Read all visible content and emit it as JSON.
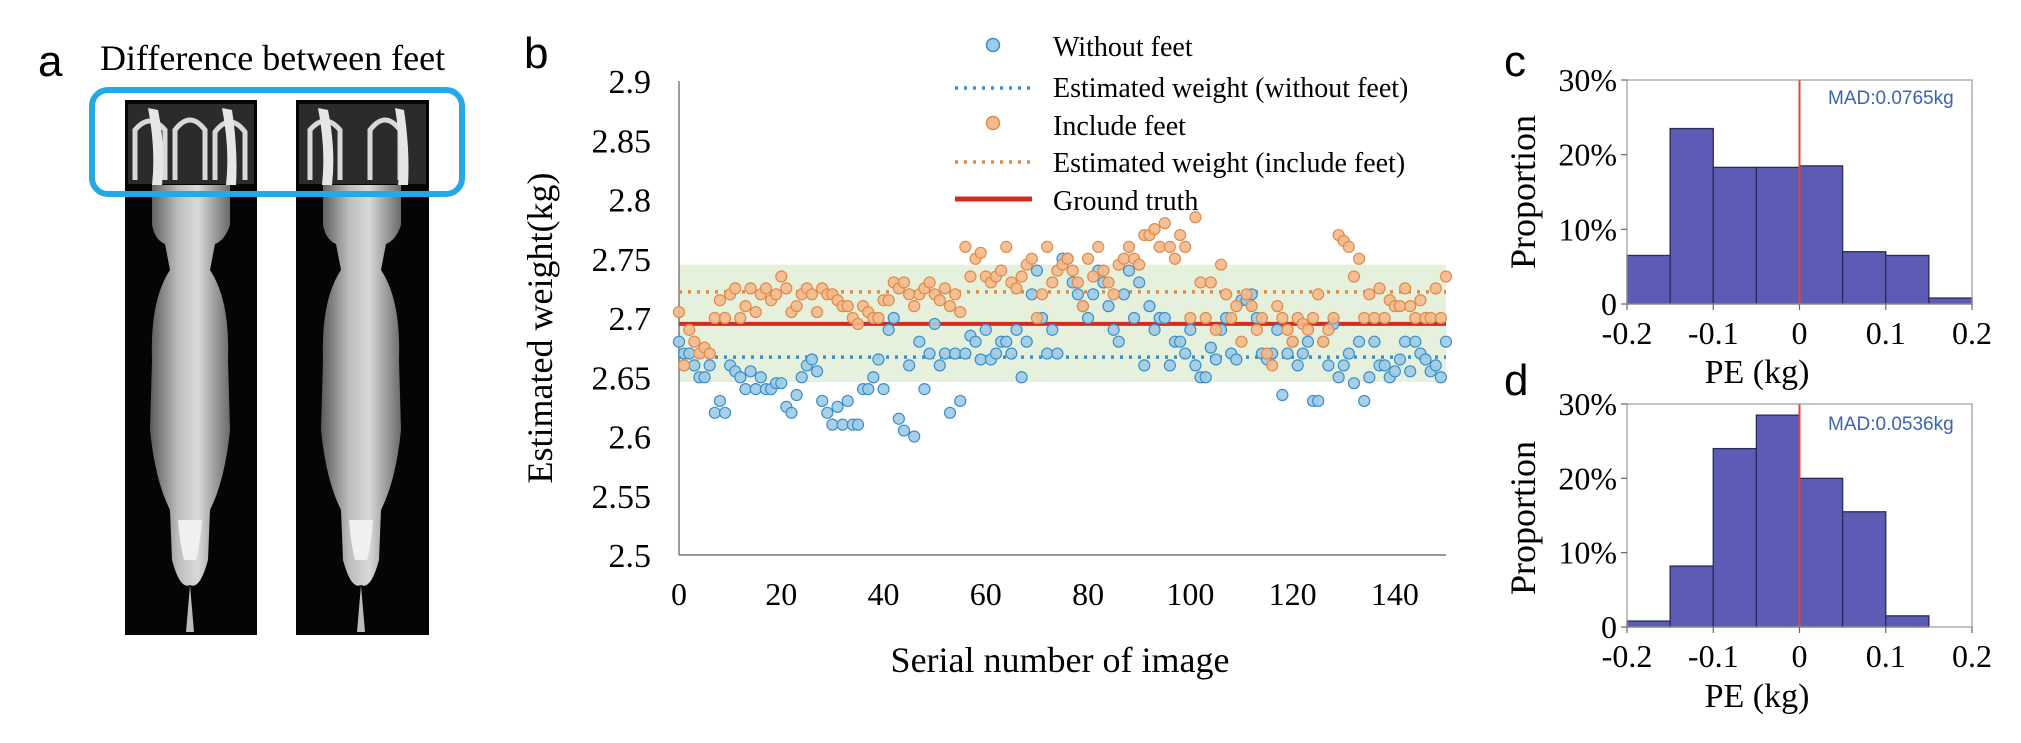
{
  "panel_labels": {
    "a": "a",
    "b": "b",
    "c": "c",
    "d": "d"
  },
  "panel_a": {
    "title": "Difference between feet"
  },
  "colors": {
    "without_fill": "#9ecbe6",
    "without_stroke": "#3a8fc8",
    "include_fill": "#f5b98c",
    "include_stroke": "#e08a48",
    "ground_truth": "#d42b1e",
    "band": "#e5f1dc",
    "hist_fill": "#5c5cb4",
    "hist_stroke": "#2a2a5a",
    "zero_line": "#e5423a",
    "mad_text": "#3b63b5",
    "highlight_box": "#22a9e6"
  },
  "chart_data": [
    {
      "id": "b",
      "type": "scatter",
      "xlabel": "Serial number of image",
      "ylabel": "Estimated weight(kg)",
      "xlim": [
        0,
        150
      ],
      "ylim": [
        2.5,
        2.9
      ],
      "xticks": [
        "0",
        "20",
        "40",
        "60",
        "80",
        "100",
        "120",
        "140"
      ],
      "xtick_values": [
        0,
        20,
        40,
        60,
        80,
        100,
        120,
        140
      ],
      "yticks": [
        "2.5",
        "2.55",
        "2.6",
        "2.65",
        "2.7",
        "2.75",
        "2.8",
        "2.85",
        "2.9"
      ],
      "ytick_values": [
        2.5,
        2.55,
        2.6,
        2.65,
        2.7,
        2.75,
        2.8,
        2.85,
        2.9
      ],
      "legend": [
        {
          "label": "Without feet",
          "kind": "marker",
          "series": "without"
        },
        {
          "label": "Estimated weight (without feet)",
          "kind": "dotted",
          "series": "without"
        },
        {
          "label": "Include feet",
          "kind": "marker",
          "series": "include"
        },
        {
          "label": "Estimated weight (include feet)",
          "kind": "dotted",
          "series": "include"
        },
        {
          "label": "Ground truth",
          "kind": "solid",
          "series": "truth"
        }
      ],
      "legend_position": "top-right",
      "band": [
        2.646,
        2.745
      ],
      "ground_truth": 2.695,
      "mean_without": 2.667,
      "mean_include": 2.722,
      "series": [
        {
          "key": "without",
          "name": "Without feet",
          "x": [
            0,
            1,
            2,
            3,
            4,
            5,
            6,
            7,
            8,
            9,
            10,
            11,
            12,
            13,
            14,
            15,
            16,
            17,
            18,
            19,
            20,
            21,
            22,
            23,
            24,
            25,
            26,
            27,
            28,
            29,
            30,
            31,
            32,
            33,
            34,
            35,
            36,
            37,
            38,
            39,
            40,
            41,
            42,
            43,
            44,
            45,
            46,
            47,
            48,
            49,
            50,
            51,
            52,
            53,
            54,
            55,
            56,
            57,
            58,
            59,
            60,
            61,
            62,
            63,
            64,
            65,
            66,
            67,
            68,
            69,
            70,
            71,
            72,
            73,
            74,
            75,
            76,
            77,
            78,
            79,
            80,
            81,
            82,
            83,
            84,
            85,
            86,
            87,
            88,
            89,
            90,
            91,
            92,
            93,
            94,
            95,
            96,
            97,
            98,
            99,
            100,
            101,
            102,
            103,
            104,
            105,
            106,
            107,
            108,
            109,
            110,
            111,
            112,
            113,
            114,
            115,
            116,
            117,
            118,
            119,
            120,
            121,
            122,
            123,
            124,
            125,
            126,
            127,
            128,
            129,
            130,
            131,
            132,
            133,
            134,
            135,
            136,
            137,
            138,
            139,
            140,
            141,
            142,
            143,
            144,
            145,
            146,
            147,
            148,
            149,
            150
          ],
          "y": [
            2.68,
            2.67,
            2.67,
            2.66,
            2.65,
            2.65,
            2.66,
            2.62,
            2.63,
            2.62,
            2.66,
            2.655,
            2.65,
            2.64,
            2.655,
            2.64,
            2.65,
            2.64,
            2.64,
            2.645,
            2.645,
            2.625,
            2.62,
            2.635,
            2.65,
            2.66,
            2.665,
            2.655,
            2.63,
            2.62,
            2.61,
            2.625,
            2.61,
            2.63,
            2.61,
            2.61,
            2.64,
            2.64,
            2.65,
            2.665,
            2.64,
            2.69,
            2.7,
            2.615,
            2.605,
            2.66,
            2.6,
            2.68,
            2.64,
            2.67,
            2.695,
            2.66,
            2.67,
            2.62,
            2.67,
            2.63,
            2.67,
            2.685,
            2.68,
            2.665,
            2.69,
            2.665,
            2.67,
            2.68,
            2.68,
            2.67,
            2.69,
            2.65,
            2.68,
            2.72,
            2.74,
            2.7,
            2.67,
            2.69,
            2.67,
            2.75,
            2.75,
            2.73,
            2.72,
            2.71,
            2.7,
            2.72,
            2.74,
            2.73,
            2.71,
            2.69,
            2.68,
            2.72,
            2.74,
            2.7,
            2.73,
            2.66,
            2.71,
            2.69,
            2.7,
            2.7,
            2.66,
            2.68,
            2.68,
            2.67,
            2.69,
            2.66,
            2.65,
            2.65,
            2.675,
            2.665,
            2.69,
            2.7,
            2.67,
            2.665,
            2.715,
            2.715,
            2.72,
            2.7,
            2.67,
            2.665,
            2.67,
            2.69,
            2.635,
            2.67,
            2.68,
            2.66,
            2.67,
            2.68,
            2.63,
            2.63,
            2.68,
            2.66,
            2.695,
            2.65,
            2.66,
            2.67,
            2.645,
            2.68,
            2.63,
            2.65,
            2.68,
            2.66,
            2.66,
            2.65,
            2.655,
            2.665,
            2.68,
            2.655,
            2.68,
            2.67,
            2.665,
            2.655,
            2.66,
            2.65,
            2.68
          ]
        },
        {
          "key": "include",
          "name": "Include feet",
          "x": [
            0,
            1,
            2,
            3,
            4,
            5,
            6,
            7,
            8,
            9,
            10,
            11,
            12,
            13,
            14,
            15,
            16,
            17,
            18,
            19,
            20,
            21,
            22,
            23,
            24,
            25,
            26,
            27,
            28,
            29,
            30,
            31,
            32,
            33,
            34,
            35,
            36,
            37,
            38,
            39,
            40,
            41,
            42,
            43,
            44,
            45,
            46,
            47,
            48,
            49,
            50,
            51,
            52,
            53,
            54,
            55,
            56,
            57,
            58,
            59,
            60,
            61,
            62,
            63,
            64,
            65,
            66,
            67,
            68,
            69,
            70,
            71,
            72,
            73,
            74,
            75,
            76,
            77,
            78,
            79,
            80,
            81,
            82,
            83,
            84,
            85,
            86,
            87,
            88,
            89,
            90,
            91,
            92,
            93,
            94,
            95,
            96,
            97,
            98,
            99,
            100,
            101,
            102,
            103,
            104,
            105,
            106,
            107,
            108,
            109,
            110,
            111,
            112,
            113,
            114,
            115,
            116,
            117,
            118,
            119,
            120,
            121,
            122,
            123,
            124,
            125,
            126,
            127,
            128,
            129,
            130,
            131,
            132,
            133,
            134,
            135,
            136,
            137,
            138,
            139,
            140,
            141,
            142,
            143,
            144,
            145,
            146,
            147,
            148,
            149,
            150
          ],
          "y": [
            2.705,
            2.66,
            2.69,
            2.68,
            2.67,
            2.675,
            2.67,
            2.7,
            2.715,
            2.7,
            2.72,
            2.725,
            2.7,
            2.71,
            2.725,
            2.705,
            2.72,
            2.725,
            2.715,
            2.72,
            2.735,
            2.725,
            2.705,
            2.71,
            2.72,
            2.725,
            2.72,
            2.705,
            2.725,
            2.72,
            2.72,
            2.715,
            2.71,
            2.71,
            2.7,
            2.695,
            2.71,
            2.705,
            2.7,
            2.7,
            2.715,
            2.715,
            2.73,
            2.725,
            2.73,
            2.72,
            2.71,
            2.72,
            2.725,
            2.73,
            2.72,
            2.715,
            2.725,
            2.71,
            2.72,
            2.705,
            2.76,
            2.735,
            2.75,
            2.755,
            2.735,
            2.73,
            2.735,
            2.74,
            2.76,
            2.73,
            2.725,
            2.735,
            2.745,
            2.75,
            2.7,
            2.72,
            2.76,
            2.73,
            2.74,
            2.745,
            2.75,
            2.74,
            2.73,
            2.71,
            2.75,
            2.735,
            2.76,
            2.74,
            2.73,
            2.72,
            2.745,
            2.75,
            2.76,
            2.75,
            2.745,
            2.77,
            2.77,
            2.775,
            2.76,
            2.78,
            2.76,
            2.75,
            2.77,
            2.76,
            2.7,
            2.785,
            2.73,
            2.7,
            2.73,
            2.69,
            2.745,
            2.72,
            2.7,
            2.71,
            2.68,
            2.72,
            2.71,
            2.69,
            2.7,
            2.67,
            2.66,
            2.71,
            2.7,
            2.69,
            2.68,
            2.7,
            2.695,
            2.69,
            2.7,
            2.72,
            2.68,
            2.69,
            2.7,
            2.77,
            2.765,
            2.76,
            2.735,
            2.75,
            2.7,
            2.72,
            2.7,
            2.725,
            2.7,
            2.715,
            2.71,
            2.71,
            2.725,
            2.71,
            2.7,
            2.715,
            2.7,
            2.7,
            2.725,
            2.7,
            2.735
          ]
        }
      ]
    },
    {
      "id": "c",
      "type": "bar",
      "ylabel": "Proportion",
      "xlabel": "PE (kg)",
      "annotation": "MAD:0.0765kg",
      "xlim": [
        -0.2,
        0.2
      ],
      "ylim": [
        0,
        0.3
      ],
      "xticks": [
        "-0.2",
        "-0.1",
        "0",
        "0.1",
        "0.2"
      ],
      "xtick_values": [
        -0.2,
        -0.1,
        0,
        0.1,
        0.2
      ],
      "yticks": [
        "0",
        "10%",
        "20%",
        "30%"
      ],
      "ytick_values": [
        0,
        0.1,
        0.2,
        0.3
      ],
      "bin_edges": [
        -0.2,
        -0.15,
        -0.1,
        -0.05,
        0,
        0.05,
        0.1,
        0.15,
        0.2
      ],
      "values": [
        0.065,
        0.235,
        0.183,
        0.183,
        0.185,
        0.07,
        0.065,
        0.008
      ]
    },
    {
      "id": "d",
      "type": "bar",
      "ylabel": "Proportion",
      "xlabel": "PE (kg)",
      "annotation": "MAD:0.0536kg",
      "xlim": [
        -0.2,
        0.2
      ],
      "ylim": [
        0,
        0.3
      ],
      "xticks": [
        "-0.2",
        "-0.1",
        "0",
        "0.1",
        "0.2"
      ],
      "xtick_values": [
        -0.2,
        -0.1,
        0,
        0.1,
        0.2
      ],
      "yticks": [
        "0",
        "10%",
        "20%",
        "30%"
      ],
      "ytick_values": [
        0,
        0.1,
        0.2,
        0.3
      ],
      "bin_edges": [
        -0.2,
        -0.15,
        -0.1,
        -0.05,
        0,
        0.05,
        0.1,
        0.15,
        0.2
      ],
      "values": [
        0.008,
        0.082,
        0.24,
        0.285,
        0.2,
        0.155,
        0.015,
        0
      ]
    }
  ]
}
